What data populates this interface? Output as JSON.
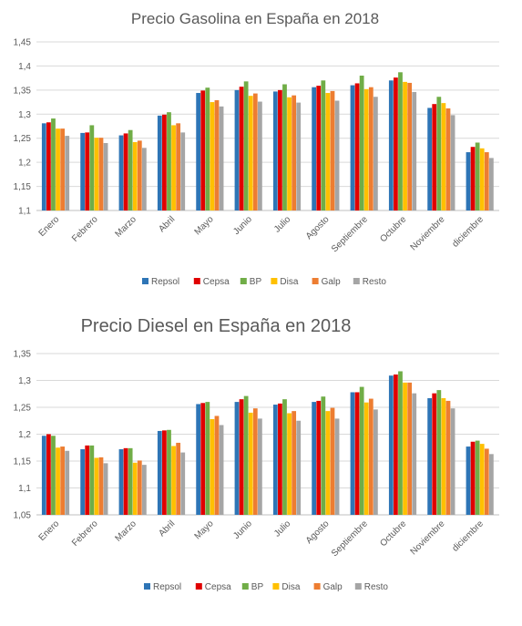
{
  "chart_data": [
    {
      "type": "bar",
      "title": "Precio Gasolina en España en 2018",
      "categories": [
        "Enero",
        "Febrero",
        "Marzo",
        "Abril",
        "Mayo",
        "Junio",
        "Julio",
        "Agosto",
        "Septiembre",
        "Octubre",
        "Noviembre",
        "diciembre"
      ],
      "ylim": [
        1.1,
        1.45
      ],
      "yticks": [
        "1,1",
        "1,15",
        "1,2",
        "1,25",
        "1,3",
        "1,35",
        "1,4",
        "1,45"
      ],
      "grid": true,
      "legend_position": "bottom",
      "series": [
        {
          "name": "Repsol",
          "color": "#2e75b6",
          "values": [
            1.281,
            1.261,
            1.256,
            1.297,
            1.344,
            1.35,
            1.347,
            1.356,
            1.36,
            1.37,
            1.313,
            1.221
          ]
        },
        {
          "name": "Cepsa",
          "color": "#e00000",
          "values": [
            1.283,
            1.262,
            1.26,
            1.299,
            1.349,
            1.357,
            1.35,
            1.359,
            1.364,
            1.376,
            1.321,
            1.232
          ]
        },
        {
          "name": "BP",
          "color": "#70ad47",
          "values": [
            1.291,
            1.277,
            1.267,
            1.304,
            1.355,
            1.368,
            1.362,
            1.37,
            1.38,
            1.387,
            1.336,
            1.241
          ]
        },
        {
          "name": "Disa",
          "color": "#ffc000",
          "values": [
            1.27,
            1.251,
            1.242,
            1.277,
            1.325,
            1.338,
            1.335,
            1.344,
            1.352,
            1.367,
            1.323,
            1.229
          ]
        },
        {
          "name": "Galp",
          "color": "#ed7d31",
          "values": [
            1.27,
            1.251,
            1.245,
            1.281,
            1.329,
            1.343,
            1.339,
            1.348,
            1.356,
            1.365,
            1.312,
            1.221
          ]
        },
        {
          "name": "Resto",
          "color": "#a5a5a5",
          "values": [
            1.255,
            1.24,
            1.23,
            1.262,
            1.316,
            1.326,
            1.324,
            1.328,
            1.336,
            1.346,
            1.298,
            1.209
          ]
        }
      ]
    },
    {
      "type": "bar",
      "title": "Precio Diesel en España en 2018",
      "categories": [
        "Enero",
        "Febrero",
        "Marzo",
        "Abril",
        "Mayo",
        "Junio",
        "Julio",
        "Agosto",
        "Septiembre",
        "Octubre",
        "Noviembre",
        "diciembre"
      ],
      "ylim": [
        1.05,
        1.35
      ],
      "yticks": [
        "1,05",
        "1,1",
        "1,15",
        "1,2",
        "1,25",
        "1,3",
        "1,35"
      ],
      "grid": true,
      "legend_position": "bottom",
      "series": [
        {
          "name": "Repsol",
          "color": "#2e75b6",
          "values": [
            1.197,
            1.172,
            1.172,
            1.206,
            1.256,
            1.26,
            1.255,
            1.26,
            1.278,
            1.309,
            1.267,
            1.177
          ]
        },
        {
          "name": "Cepsa",
          "color": "#e00000",
          "values": [
            1.2,
            1.179,
            1.174,
            1.207,
            1.258,
            1.265,
            1.257,
            1.262,
            1.278,
            1.311,
            1.276,
            1.186
          ]
        },
        {
          "name": "BP",
          "color": "#70ad47",
          "values": [
            1.197,
            1.179,
            1.174,
            1.208,
            1.26,
            1.271,
            1.265,
            1.27,
            1.288,
            1.317,
            1.282,
            1.188
          ]
        },
        {
          "name": "Disa",
          "color": "#ffc000",
          "values": [
            1.175,
            1.156,
            1.147,
            1.178,
            1.228,
            1.24,
            1.239,
            1.243,
            1.259,
            1.296,
            1.267,
            1.182
          ]
        },
        {
          "name": "Galp",
          "color": "#ed7d31",
          "values": [
            1.177,
            1.157,
            1.151,
            1.184,
            1.234,
            1.248,
            1.243,
            1.249,
            1.266,
            1.296,
            1.262,
            1.173
          ]
        },
        {
          "name": "Resto",
          "color": "#a5a5a5",
          "values": [
            1.169,
            1.146,
            1.143,
            1.166,
            1.217,
            1.229,
            1.225,
            1.229,
            1.246,
            1.276,
            1.248,
            1.163
          ]
        }
      ]
    }
  ]
}
